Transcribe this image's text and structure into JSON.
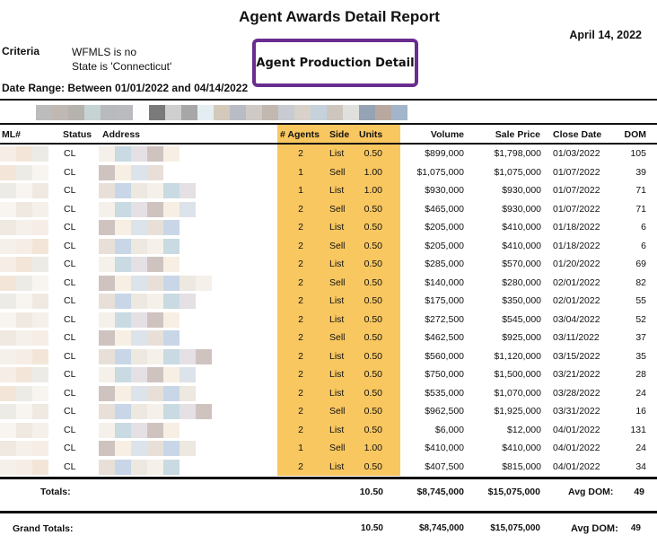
{
  "report": {
    "title": "Agent Awards Detail Report",
    "date": "April 14, 2022",
    "criteria_label": "Criteria",
    "criteria": [
      "WFMLS is no",
      "State is 'Connecticut'"
    ],
    "date_range": "Date Range: Between 01/01/2022 and 04/14/2022",
    "callout": "Agent Production Detail",
    "highlight_color": "#f9c75f",
    "callout_border_color": "#6a2d8f"
  },
  "table": {
    "headers": {
      "ml": "ML#",
      "status": "Status",
      "address": "Address",
      "agents": "# Agents",
      "side": "Side",
      "units": "Units",
      "volume": "Volume",
      "sale_price": "Sale Price",
      "close_date": "Close Date",
      "dom": "DOM"
    },
    "rows": [
      {
        "status": "CL",
        "agents": "2",
        "side": "List",
        "units": "0.50",
        "volume": "$899,000",
        "sale_price": "$1,798,000",
        "close_date": "01/03/2022",
        "dom": "105"
      },
      {
        "status": "CL",
        "agents": "1",
        "side": "Sell",
        "units": "1.00",
        "volume": "$1,075,000",
        "sale_price": "$1,075,000",
        "close_date": "01/07/2022",
        "dom": "39"
      },
      {
        "status": "CL",
        "agents": "1",
        "side": "List",
        "units": "1.00",
        "volume": "$930,000",
        "sale_price": "$930,000",
        "close_date": "01/07/2022",
        "dom": "71"
      },
      {
        "status": "CL",
        "agents": "2",
        "side": "Sell",
        "units": "0.50",
        "volume": "$465,000",
        "sale_price": "$930,000",
        "close_date": "01/07/2022",
        "dom": "71"
      },
      {
        "status": "CL",
        "agents": "2",
        "side": "List",
        "units": "0.50",
        "volume": "$205,000",
        "sale_price": "$410,000",
        "close_date": "01/18/2022",
        "dom": "6"
      },
      {
        "status": "CL",
        "agents": "2",
        "side": "Sell",
        "units": "0.50",
        "volume": "$205,000",
        "sale_price": "$410,000",
        "close_date": "01/18/2022",
        "dom": "6"
      },
      {
        "status": "CL",
        "agents": "2",
        "side": "List",
        "units": "0.50",
        "volume": "$285,000",
        "sale_price": "$570,000",
        "close_date": "01/20/2022",
        "dom": "69"
      },
      {
        "status": "CL",
        "agents": "2",
        "side": "Sell",
        "units": "0.50",
        "volume": "$140,000",
        "sale_price": "$280,000",
        "close_date": "02/01/2022",
        "dom": "82"
      },
      {
        "status": "CL",
        "agents": "2",
        "side": "List",
        "units": "0.50",
        "volume": "$175,000",
        "sale_price": "$350,000",
        "close_date": "02/01/2022",
        "dom": "55"
      },
      {
        "status": "CL",
        "agents": "2",
        "side": "List",
        "units": "0.50",
        "volume": "$272,500",
        "sale_price": "$545,000",
        "close_date": "03/04/2022",
        "dom": "52"
      },
      {
        "status": "CL",
        "agents": "2",
        "side": "Sell",
        "units": "0.50",
        "volume": "$462,500",
        "sale_price": "$925,000",
        "close_date": "03/11/2022",
        "dom": "37"
      },
      {
        "status": "CL",
        "agents": "2",
        "side": "List",
        "units": "0.50",
        "volume": "$560,000",
        "sale_price": "$1,120,000",
        "close_date": "03/15/2022",
        "dom": "35"
      },
      {
        "status": "CL",
        "agents": "2",
        "side": "List",
        "units": "0.50",
        "volume": "$750,000",
        "sale_price": "$1,500,000",
        "close_date": "03/21/2022",
        "dom": "28"
      },
      {
        "status": "CL",
        "agents": "2",
        "side": "List",
        "units": "0.50",
        "volume": "$535,000",
        "sale_price": "$1,070,000",
        "close_date": "03/28/2022",
        "dom": "24"
      },
      {
        "status": "CL",
        "agents": "2",
        "side": "Sell",
        "units": "0.50",
        "volume": "$962,500",
        "sale_price": "$1,925,000",
        "close_date": "03/31/2022",
        "dom": "16"
      },
      {
        "status": "CL",
        "agents": "2",
        "side": "List",
        "units": "0.50",
        "volume": "$6,000",
        "sale_price": "$12,000",
        "close_date": "04/01/2022",
        "dom": "131"
      },
      {
        "status": "CL",
        "agents": "1",
        "side": "Sell",
        "units": "1.00",
        "volume": "$410,000",
        "sale_price": "$410,000",
        "close_date": "04/01/2022",
        "dom": "24"
      },
      {
        "status": "CL",
        "agents": "2",
        "side": "List",
        "units": "0.50",
        "volume": "$407,500",
        "sale_price": "$815,000",
        "close_date": "04/01/2022",
        "dom": "34"
      }
    ],
    "totals": {
      "label": "Totals:",
      "units": "10.50",
      "volume": "$8,745,000",
      "sale_price": "$15,075,000",
      "avg_dom_label": "Avg DOM:",
      "avg_dom": "49"
    },
    "grand_totals": {
      "label": "Grand Totals:",
      "units": "10.50",
      "volume": "$8,745,000",
      "sale_price": "$15,075,000",
      "avg_dom_label": "Avg DOM:",
      "avg_dom": "49"
    }
  }
}
